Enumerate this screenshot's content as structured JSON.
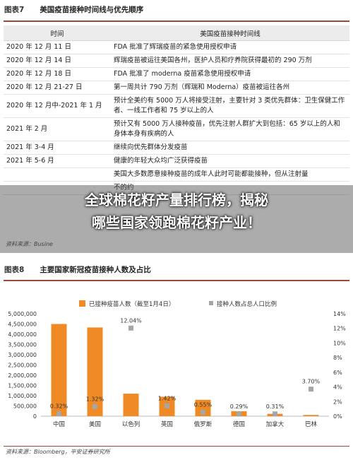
{
  "figure7": {
    "label": "图表7",
    "title": "美国疫苗接种时间线与优先顺序",
    "headers": [
      "时间",
      "美国疫苗接种时间线"
    ],
    "rows": [
      {
        "date": "2020 年 12 月 11 日",
        "event": "FDA 批准了辉瑞疫苗的紧急使用授权申请"
      },
      {
        "date": "2020 年 12 月 14 日",
        "event": "辉瑞疫苗被运往美国各州，医护人员和疗养院获得最初的 290 万剂"
      },
      {
        "date": "2020 年 12 月 18 日",
        "event": "FDA 批准了 moderna 疫苗紧急使用授权申请"
      },
      {
        "date": "2020 年 12 月 21-27 日",
        "event": "第一周共计 790 万剂（辉瑞和 Moderna）疫苗被运往各州"
      },
      {
        "date": "2020 年 12 月中-2021 年 1 月",
        "event": "预计全美约有 5000 万人将接受注射，主要针对 3 类优先群体：卫生保健工作者、一线工作者和 75 岁以上的人"
      },
      {
        "date": "2021 年 2 月",
        "event": "预计又有 5000 万人接种疫苗，优先注射人群扩大到包括：65 岁以上的人和身体本身有疾病的人"
      },
      {
        "date": "2021 年 3-4 月",
        "event": "继续向优先群体分发疫苗"
      },
      {
        "date": "2021 年 5-6 月",
        "event": "健康的年轻大众均广泛获得疫苗"
      },
      {
        "date": "",
        "event": "美国大多数愿意接种疫苗的成年人此时可能都能接种，但从注射量"
      },
      {
        "date": "",
        "event": "不的约"
      }
    ],
    "source": "资料来源：Busine"
  },
  "headline": {
    "line1": "全球棉花籽产量排行榜，揭秘",
    "line2": "哪些国家领跑棉花籽产业！"
  },
  "figure8": {
    "label": "图表8",
    "title": "主要国家新冠疫苗接种人数及占比",
    "source": "资料来源：Bloomberg，平安证券研究所"
  },
  "colors": {
    "bar": "#f08a24",
    "marker": "#a6a6a6",
    "rule": "#9a4a36"
  },
  "chart_data": {
    "type": "bar",
    "categories": [
      "中国",
      "美国",
      "以色列",
      "英国",
      "俄罗斯",
      "德国",
      "加拿大",
      "巴林"
    ],
    "series": [
      {
        "name": "已接种疫苗人数（截至1月4日）",
        "axis": "left",
        "values": [
          4500000,
          4330000,
          1100000,
          950000,
          800000,
          240000,
          115000,
          60000
        ]
      },
      {
        "name": "接种人数占总人口比例",
        "axis": "right",
        "values": [
          0.32,
          1.32,
          12.04,
          1.42,
          0.55,
          0.29,
          0.31,
          3.7
        ]
      }
    ],
    "point_labels": [
      "0.32%",
      "1.32%",
      "12.04%",
      "1.42%",
      "0.55%",
      "0.29%",
      "0.31%",
      "3.70%"
    ],
    "left_ticks": [
      "0",
      "500,000",
      "1,000,000",
      "1,500,000",
      "2,000,000",
      "2,500,000",
      "3,000,000",
      "3,500,000",
      "4,000,000",
      "4,500,000",
      "5,000,000"
    ],
    "right_ticks": [
      "0%",
      "2%",
      "4%",
      "6%",
      "8%",
      "10%",
      "12%",
      "14%"
    ],
    "ylim_left": [
      0,
      5000000
    ],
    "ylim_right": [
      0,
      14
    ],
    "legend_position": "top"
  }
}
